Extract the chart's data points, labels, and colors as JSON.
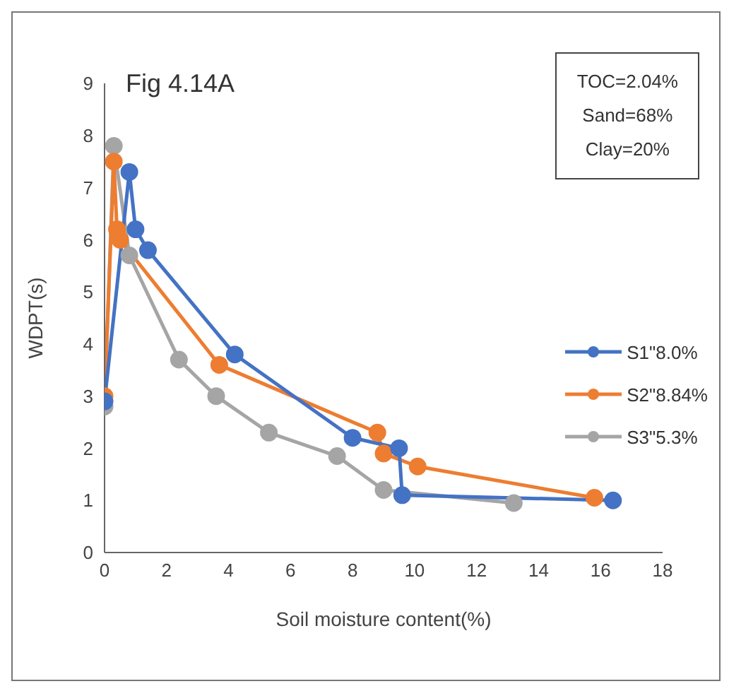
{
  "chart_data": {
    "type": "line",
    "title": "Fig 4.14A",
    "xlabel": "Soil moisture content(%)",
    "ylabel": "WDPT(s)",
    "annotations": [
      "TOC=2.04%",
      "Sand=68%",
      "Clay=20%"
    ],
    "xlim": [
      0,
      18
    ],
    "xticks": [
      0,
      2,
      4,
      6,
      8,
      10,
      12,
      14,
      16,
      18
    ],
    "ylim": [
      0,
      9
    ],
    "yticks": [
      0,
      1,
      2,
      3,
      4,
      5,
      6,
      7,
      8,
      9
    ],
    "grid": false,
    "legend": "right",
    "marker": "circle",
    "line_style": "solid",
    "series": [
      {
        "name": "S1\"8.0%",
        "color": "#4472c4",
        "x": [
          0,
          0.8,
          1.0,
          1.4,
          4.2,
          8.0,
          9.5,
          9.6,
          16.4
        ],
        "values": [
          2.9,
          7.3,
          6.2,
          5.8,
          3.8,
          2.2,
          2.0,
          1.1,
          1.0
        ]
      },
      {
        "name": "S2\"8.84%",
        "color": "#ed7d31",
        "x": [
          0,
          0.3,
          0.4,
          0.5,
          3.7,
          8.8,
          9.0,
          10.1,
          15.8
        ],
        "values": [
          3.0,
          7.5,
          6.2,
          6.0,
          3.6,
          2.3,
          1.9,
          1.65,
          1.05
        ]
      },
      {
        "name": "S3\"5.3%",
        "color": "#a5a5a5",
        "x": [
          0,
          0.3,
          0.8,
          2.4,
          3.6,
          5.3,
          7.5,
          9.0,
          13.2
        ],
        "values": [
          2.8,
          7.8,
          5.7,
          3.7,
          3.0,
          2.3,
          1.85,
          1.2,
          0.95
        ]
      }
    ]
  }
}
